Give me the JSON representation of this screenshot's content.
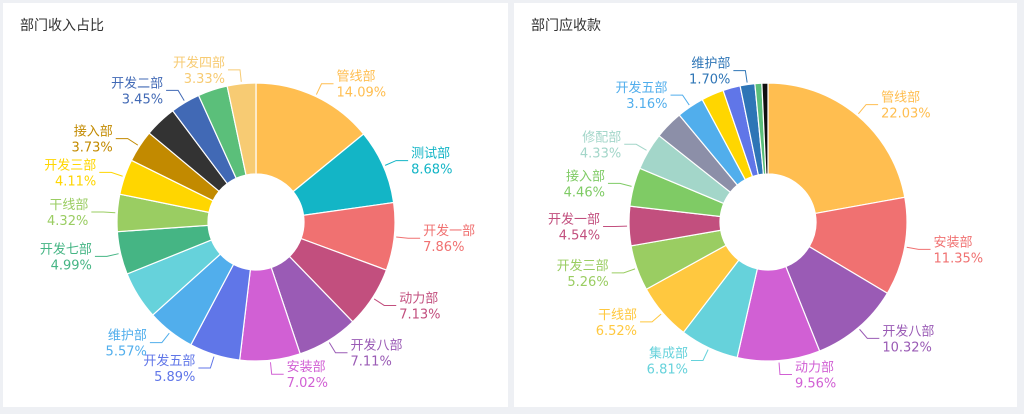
{
  "chart_data": [
    {
      "type": "pie",
      "title": "部门收入占比",
      "series": [
        {
          "label": "管线部",
          "value": 14.09,
          "value_text": "14.09%",
          "color": "#FFBE50"
        },
        {
          "label": "测试部",
          "value": 8.68,
          "value_text": "8.68%",
          "color": "#13B5C6"
        },
        {
          "label": "开发一部",
          "value": 7.86,
          "value_text": "7.86%",
          "color": "#F07171"
        },
        {
          "label": "动力部",
          "value": 7.13,
          "value_text": "7.13%",
          "color": "#C24F7E"
        },
        {
          "label": "开发八部",
          "value": 7.11,
          "value_text": "7.11%",
          "color": "#9A5BB5"
        },
        {
          "label": "安装部",
          "value": 7.02,
          "value_text": "7.02%",
          "color": "#D160D4"
        },
        {
          "label": "开发五部",
          "value": 5.89,
          "value_text": "5.89%",
          "color": "#6076E8"
        },
        {
          "label": "维护部",
          "value": 5.57,
          "value_text": "5.57%",
          "color": "#51AEEC"
        },
        {
          "label": "",
          "value": 5.57,
          "value_text": "",
          "color": "#66D2DB"
        },
        {
          "label": "开发七部",
          "value": 4.99,
          "value_text": "4.99%",
          "color": "#45B584"
        },
        {
          "label": "干线部",
          "value": 4.32,
          "value_text": "4.32%",
          "color": "#9ACD62"
        },
        {
          "label": "开发三部",
          "value": 4.11,
          "value_text": "4.11%",
          "color": "#FFD600"
        },
        {
          "label": "接入部",
          "value": 3.73,
          "value_text": "3.73%",
          "color": "#C28A00"
        },
        {
          "label": "",
          "value": 3.73,
          "value_text": "",
          "color": "#333333"
        },
        {
          "label": "开发二部",
          "value": 3.45,
          "value_text": "3.45%",
          "color": "#4169B5"
        },
        {
          "label": "",
          "value": 3.45,
          "value_text": "",
          "color": "#5BBF7A"
        },
        {
          "label": "开发四部",
          "value": 3.33,
          "value_text": "3.33%",
          "color": "#F7CB73"
        }
      ]
    },
    {
      "type": "pie",
      "title": "部门应收款",
      "series": [
        {
          "label": "管线部",
          "value": 22.03,
          "value_text": "22.03%",
          "color": "#FFBE50"
        },
        {
          "label": "安装部",
          "value": 11.35,
          "value_text": "11.35%",
          "color": "#F07171"
        },
        {
          "label": "开发八部",
          "value": 10.32,
          "value_text": "10.32%",
          "color": "#9A5BB5"
        },
        {
          "label": "动力部",
          "value": 9.56,
          "value_text": "9.56%",
          "color": "#D160D4"
        },
        {
          "label": "集成部",
          "value": 6.81,
          "value_text": "6.81%",
          "color": "#66D2DB"
        },
        {
          "label": "干线部",
          "value": 6.52,
          "value_text": "6.52%",
          "color": "#FFC83F"
        },
        {
          "label": "开发三部",
          "value": 5.26,
          "value_text": "5.26%",
          "color": "#9ACD62"
        },
        {
          "label": "开发一部",
          "value": 4.54,
          "value_text": "4.54%",
          "color": "#C24F7E"
        },
        {
          "label": "接入部",
          "value": 4.46,
          "value_text": "4.46%",
          "color": "#7FCB65"
        },
        {
          "label": "修配部",
          "value": 4.33,
          "value_text": "4.33%",
          "color": "#A3D6C9"
        },
        {
          "label": "",
          "value": 3.3,
          "value_text": "",
          "color": "#8C8FA8"
        },
        {
          "label": "开发五部",
          "value": 3.16,
          "value_text": "3.16%",
          "color": "#51AEEC"
        },
        {
          "label": "",
          "value": 2.6,
          "value_text": "",
          "color": "#FFD600"
        },
        {
          "label": "",
          "value": 2.0,
          "value_text": "",
          "color": "#6076E8"
        },
        {
          "label": "维护部",
          "value": 1.7,
          "value_text": "1.70%",
          "color": "#2E75B6"
        },
        {
          "label": "",
          "value": 0.8,
          "value_text": "",
          "color": "#5BBF7A"
        },
        {
          "label": "",
          "value": 0.7,
          "value_text": "",
          "color": "#111111"
        }
      ]
    }
  ]
}
